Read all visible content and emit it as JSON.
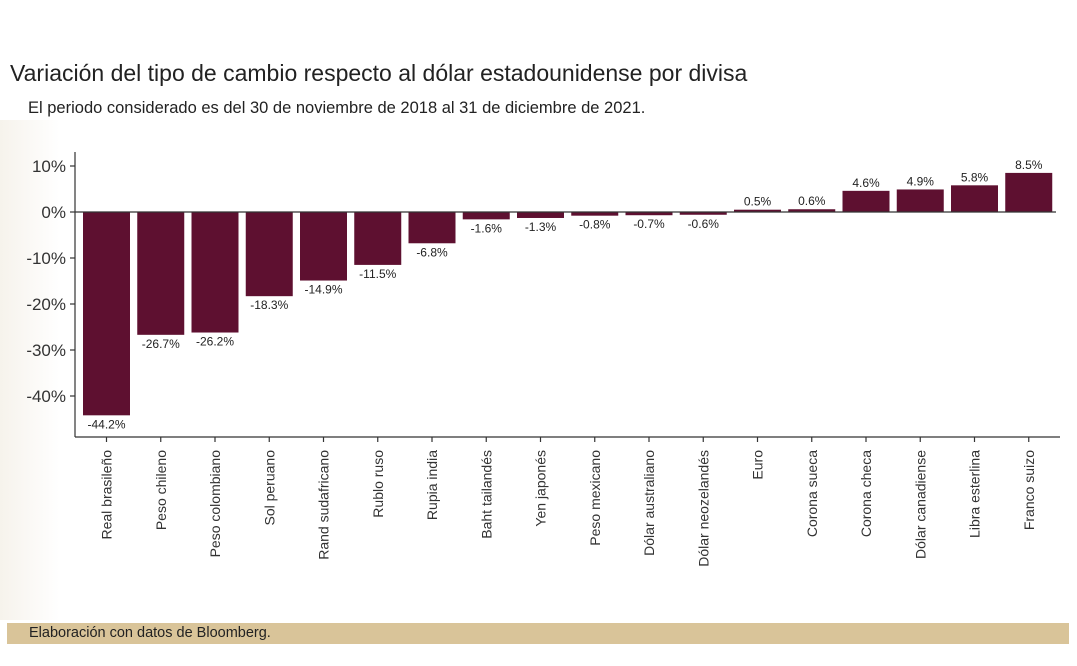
{
  "title": "Variación del tipo de cambio respecto al dólar estadounidense por divisa",
  "subtitle": "El periodo considerado es del 30 de noviembre de 2018 al 31 de diciembre de 2021.",
  "footer": "Elaboración con datos de Bloomberg.",
  "colors": {
    "bar": "#5e1030",
    "axis": "#333333",
    "text": "#222222",
    "footer_band": "#d9c499"
  },
  "chart_data": {
    "type": "bar",
    "title": "Variación del tipo de cambio respecto al dólar estadounidense por divisa",
    "subtitle": "El periodo considerado es del 30 de noviembre de 2018 al 31 de diciembre de 2021.",
    "xlabel": "",
    "ylabel": "",
    "ylim": [
      -48,
      12
    ],
    "yticks": [
      10,
      0,
      -10,
      -20,
      -30,
      -40
    ],
    "ytick_labels": [
      "10%",
      "0%",
      "-10%",
      "-20%",
      "-30%",
      "-40%"
    ],
    "grid": false,
    "categories": [
      "Real brasileño",
      "Peso chileno",
      "Peso colombiano",
      "Sol peruano",
      "Rand sudafricano",
      "Rublo ruso",
      "Rupia india",
      "Baht tailandés",
      "Yen japonés",
      "Peso mexicano",
      "Dólar australiano",
      "Dólar neozelandés",
      "Euro",
      "Corona sueca",
      "Corona checa",
      "Dólar canadiense",
      "Libra esterlina",
      "Franco suizo"
    ],
    "values": [
      -44.2,
      -26.7,
      -26.2,
      -18.3,
      -14.9,
      -11.5,
      -6.8,
      -1.6,
      -1.3,
      -0.8,
      -0.7,
      -0.6,
      0.5,
      0.6,
      4.6,
      4.9,
      5.8,
      8.5
    ],
    "value_labels": [
      "-44.2%",
      "-26.7%",
      "-26.2%",
      "-18.3%",
      "-14.9%",
      "-11.5%",
      "-6.8%",
      "-1.6%",
      "-1.3%",
      "-0.8%",
      "-0.7%",
      "-0.6%",
      "0.5%",
      "0.6%",
      "4.6%",
      "4.9%",
      "5.8%",
      "8.5%"
    ]
  }
}
